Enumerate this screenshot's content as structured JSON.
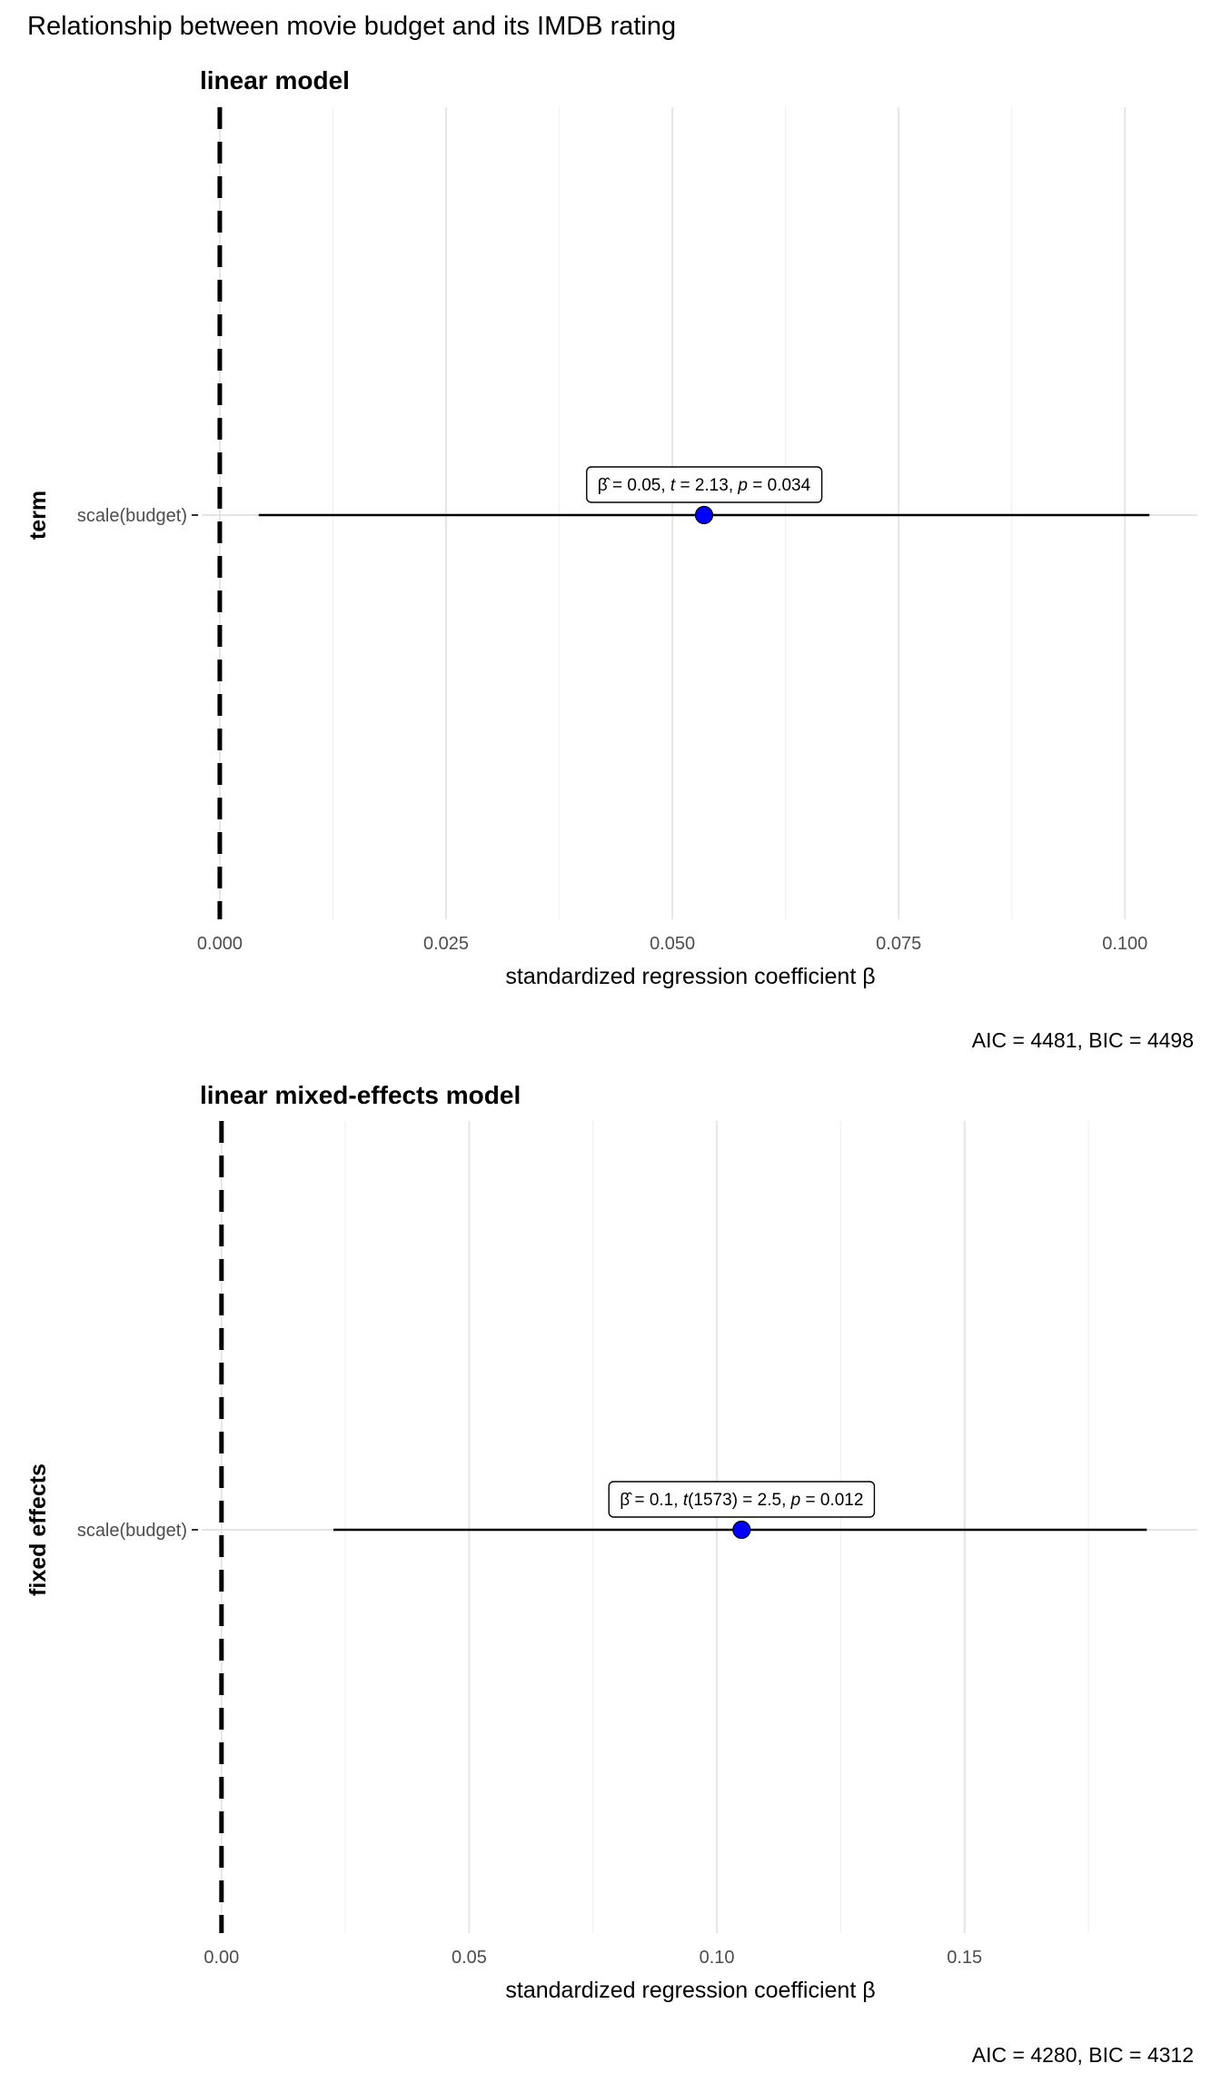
{
  "title": "Relationship between movie budget and its IMDB rating",
  "chart_data": [
    {
      "type": "scatter",
      "subtitle": "linear model",
      "ylabel": "term",
      "xlabel": "standardized regression coefficient β",
      "categories": [
        "scale(budget)"
      ],
      "xlim": [
        -0.002,
        0.108
      ],
      "xticks": [
        0.0,
        0.025,
        0.05,
        0.075,
        0.1
      ],
      "xtick_labels": [
        "0.000",
        "0.025",
        "0.050",
        "0.075",
        "0.100"
      ],
      "reference_line": 0,
      "estimate": 0.0535,
      "ci": [
        0.0043,
        0.1027
      ],
      "point_color": "#0000ff",
      "label": {
        "beta": "0.05",
        "stat_name": "t",
        "df": "",
        "stat": "2.13",
        "p": "0.034"
      },
      "caption": "AIC = 4481, BIC = 4498",
      "grid": true
    },
    {
      "type": "scatter",
      "subtitle": "linear mixed-effects model",
      "ylabel": "fixed effects",
      "xlabel": "standardized regression coefficient β",
      "categories": [
        "scale(budget)"
      ],
      "xlim": [
        -0.004,
        0.197
      ],
      "xticks": [
        0.0,
        0.05,
        0.1,
        0.15
      ],
      "xtick_labels": [
        "0.00",
        "0.05",
        "0.10",
        "0.15"
      ],
      "reference_line": 0,
      "estimate": 0.105,
      "ci": [
        0.0226,
        0.1868
      ],
      "point_color": "#0000ff",
      "label": {
        "beta": "0.1",
        "stat_name": "t",
        "df": "1573",
        "stat": "2.5",
        "p": "0.012"
      },
      "caption": "AIC = 4280, BIC = 4312",
      "grid": true
    }
  ]
}
